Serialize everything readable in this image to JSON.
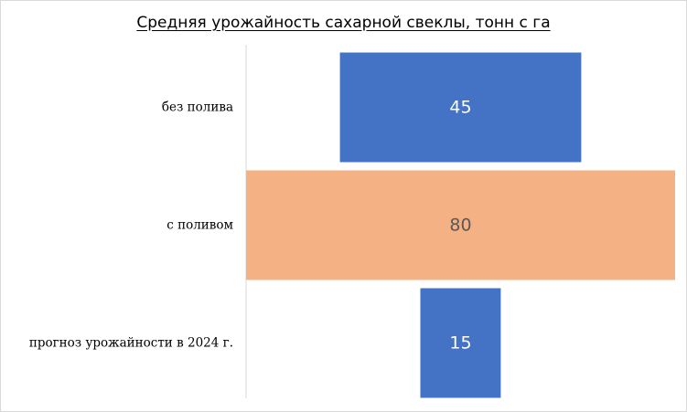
{
  "chart_data": {
    "type": "bar",
    "orientation": "horizontal",
    "title": "Средняя урожайность сахарной свеклы, тонн с га",
    "categories": [
      "без полива",
      "с поливом",
      "прогноз урожайности в 2024 г."
    ],
    "values": [
      45,
      80,
      15
    ],
    "data_labels": [
      "45",
      "80",
      "15"
    ],
    "bar_colors": [
      "#4472C4",
      "#F4B183",
      "#4472C4"
    ],
    "label_colors": [
      "#ffffff",
      "#595959",
      "#ffffff"
    ],
    "xlim": [
      0,
      80
    ],
    "grid": false,
    "legend": "none"
  }
}
